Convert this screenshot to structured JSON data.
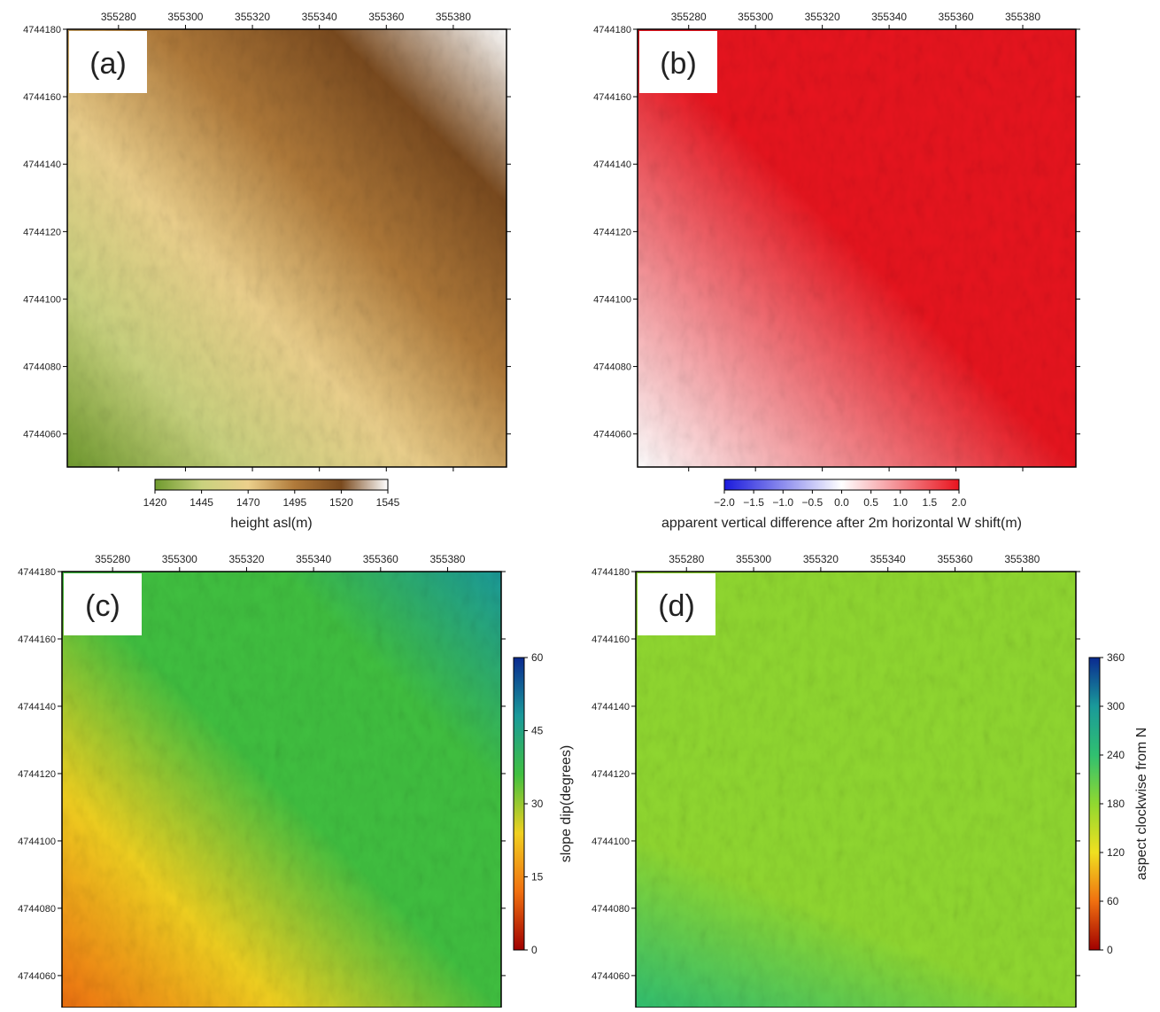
{
  "chart_data": [
    {
      "type": "map",
      "panel_label": "(a)",
      "xlim": [
        355264.7,
        355395.9
      ],
      "ylim": [
        4744050.2,
        4744180
      ],
      "xticks": [
        355280,
        355300,
        355320,
        355340,
        355360,
        355380
      ],
      "yticks": [
        4744060,
        4744080,
        4744100,
        4744120,
        4744140,
        4744160,
        4744180
      ],
      "colorbar": {
        "orientation": "horizontal",
        "label": "height asl(m)",
        "lim": [
          1420,
          1545
        ],
        "ticks": [
          1420,
          1445,
          1470,
          1495,
          1520,
          1545
        ],
        "colors": [
          "#6f9a2e",
          "#c9d27e",
          "#ecd08c",
          "#b07a3a",
          "#7a4a1e",
          "#ffffff"
        ]
      }
    },
    {
      "type": "map",
      "panel_label": "(b)",
      "xlim": [
        355264.7,
        355395.9
      ],
      "ylim": [
        4744050.2,
        4744180
      ],
      "xticks": [
        355280,
        355300,
        355320,
        355340,
        355360,
        355380
      ],
      "yticks": [
        4744060,
        4744080,
        4744100,
        4744120,
        4744140,
        4744160,
        4744180
      ],
      "colorbar": {
        "orientation": "horizontal",
        "label": "apparent vertical difference after 2m horizontal W shift(m)",
        "lim": [
          -2,
          2
        ],
        "ticks": [
          {
            "value": -2,
            "label": "−2.0"
          },
          {
            "value": -1.5,
            "label": "−1.5"
          },
          {
            "value": -1,
            "label": "−1.0"
          },
          {
            "value": -0.5,
            "label": "−0.5"
          },
          {
            "value": 0,
            "label": "0.0"
          },
          0.5,
          {
            "value": 1,
            "label": "1.0"
          },
          1.5,
          {
            "value": 2,
            "label": "2.0"
          }
        ],
        "colors": [
          "#1a1adc",
          "#ffffff",
          "#e8141e"
        ]
      }
    },
    {
      "type": "map",
      "panel_label": "(c)",
      "xlim": [
        355264.9,
        355396
      ],
      "ylim": [
        4744050.5,
        4744180
      ],
      "xticks": [
        355280,
        355300,
        355320,
        355340,
        355360,
        355380
      ],
      "yticks": [
        4744060,
        4744080,
        4744100,
        4744120,
        4744140,
        4744160,
        4744180
      ],
      "colorbar": {
        "orientation": "vertical",
        "label": "slope dip(degrees)",
        "lim": [
          0,
          60
        ],
        "ticks": [
          0,
          15,
          30,
          45,
          60
        ],
        "colors": [
          "#a00000",
          "#f07010",
          "#f0d020",
          "#40c040",
          "#1a9a9a",
          "#0a2a90"
        ]
      }
    },
    {
      "type": "map",
      "panel_label": "(d)",
      "xlim": [
        355264.9,
        355396
      ],
      "ylim": [
        4744050.5,
        4744180
      ],
      "xticks": [
        355280,
        355300,
        355320,
        355340,
        355360,
        355380
      ],
      "yticks": [
        4744060,
        4744080,
        4744100,
        4744120,
        4744140,
        4744160,
        4744180
      ],
      "colorbar": {
        "orientation": "vertical",
        "label": "aspect clockwise from N",
        "lim": [
          0,
          360
        ],
        "ticks": [
          0,
          60,
          120,
          180,
          240,
          300,
          360
        ],
        "colors": [
          "#a00000",
          "#f07010",
          "#f0e020",
          "#90d830",
          "#30c070",
          "#1a9a9a",
          "#0a2a90"
        ]
      }
    }
  ]
}
